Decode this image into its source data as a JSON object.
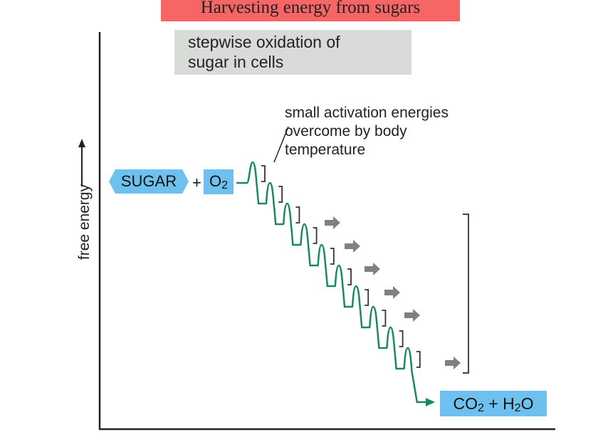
{
  "title": "Harvesting energy from sugars",
  "header_box": {
    "line1": "stepwise oxidation of",
    "line2": "sugar in cells"
  },
  "annotation": {
    "line1": "small activation energies",
    "line2": "overcome by body",
    "line3": "temperature"
  },
  "axis": {
    "y_label": "free energy"
  },
  "reactants": {
    "sugar": "SUGAR",
    "plus": "+",
    "o2_base": "O",
    "o2_sub": "2"
  },
  "products": {
    "co": "CO",
    "co_sub": "2",
    "plus": " + H",
    "h_sub": "2",
    "o": "O"
  },
  "colors": {
    "title_bg": "#f76565",
    "box_bg": "#d9dbd9",
    "molecule_bg": "#6ec1ee",
    "pathway": "#1a8a5a",
    "arrow": "#808080"
  },
  "activation_steps": 10,
  "energy_release_arrows": 6
}
